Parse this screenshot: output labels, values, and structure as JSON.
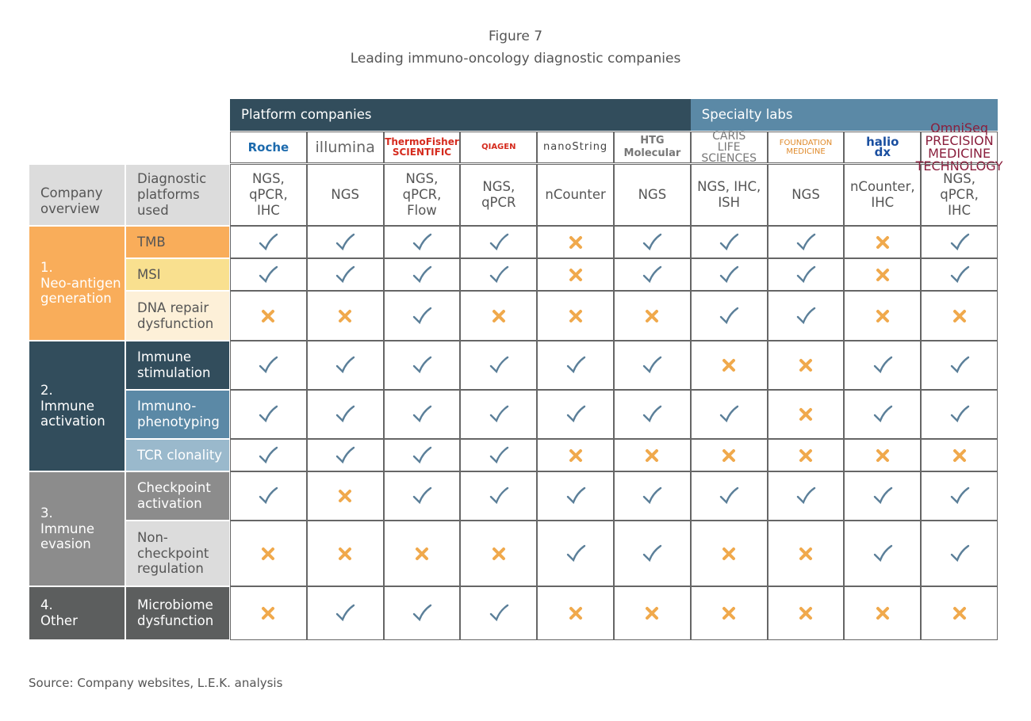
{
  "header": {
    "figure": "Figure 7",
    "title": "Leading immuno-oncology diagnostic companies"
  },
  "table": {
    "overview_label": "Company overview",
    "platforms_label": "Diagnostic platforms used",
    "groups": [
      {
        "label": "Platform companies",
        "companies": [
          {
            "logo": "Roche",
            "platforms": "NGS,\nqPCR,\nIHC"
          },
          {
            "logo": "illumina",
            "platforms": "NGS"
          },
          {
            "logo": "ThermoFisher\nSCIENTIFIC",
            "platforms": "NGS,\nqPCR,\nFlow"
          },
          {
            "logo": "QIAGEN",
            "platforms": "NGS,\nqPCR"
          },
          {
            "logo": "nanoString",
            "platforms": "nCounter"
          },
          {
            "logo": "HTG Molecular",
            "platforms": "NGS"
          }
        ]
      },
      {
        "label": "Specialty labs",
        "companies": [
          {
            "logo": "CARIS\nLIFE SCIENCES",
            "platforms": "NGS, IHC,\nISH"
          },
          {
            "logo": "FOUNDATION\nMEDICINE",
            "platforms": "NGS"
          },
          {
            "logo": "halio\ndx",
            "platforms": "nCounter,\nIHC"
          },
          {
            "logo": "OmniSeq\nPRECISION MEDICINE TECHNOLOGY",
            "platforms": "NGS,\nqPCR,\nIHC"
          }
        ]
      }
    ],
    "sections": [
      {
        "label": "1.\nNeo-antigen\ngeneration",
        "rows": [
          {
            "label": "TMB",
            "checks": [
              true,
              true,
              true,
              true,
              false,
              true,
              true,
              true,
              false,
              true
            ]
          },
          {
            "label": "MSI",
            "checks": [
              true,
              true,
              true,
              true,
              false,
              true,
              true,
              true,
              false,
              true
            ]
          },
          {
            "label": "DNA repair\ndysfunction",
            "checks": [
              false,
              false,
              true,
              false,
              false,
              false,
              true,
              true,
              false,
              false
            ]
          }
        ]
      },
      {
        "label": "2.\nImmune\nactivation",
        "rows": [
          {
            "label": "Immune\nstimulation",
            "checks": [
              true,
              true,
              true,
              true,
              true,
              true,
              false,
              false,
              true,
              true
            ]
          },
          {
            "label": "Immuno-\nphenotyping",
            "checks": [
              true,
              true,
              true,
              true,
              true,
              true,
              true,
              false,
              true,
              true
            ]
          },
          {
            "label": "TCR clonality",
            "checks": [
              true,
              true,
              true,
              true,
              false,
              false,
              false,
              false,
              false,
              false
            ]
          }
        ]
      },
      {
        "label": "3.\nImmune\nevasion",
        "rows": [
          {
            "label": "Checkpoint\nactivation",
            "checks": [
              true,
              false,
              true,
              true,
              true,
              true,
              true,
              true,
              true,
              true
            ]
          },
          {
            "label": "Non-\ncheckpoint\nregulation",
            "checks": [
              false,
              false,
              false,
              false,
              true,
              true,
              false,
              false,
              true,
              true
            ]
          }
        ]
      },
      {
        "label": "4.\nOther",
        "rows": [
          {
            "label": "Microbiome\ndysfunction",
            "checks": [
              false,
              true,
              true,
              true,
              false,
              false,
              false,
              false,
              false,
              false
            ]
          }
        ]
      }
    ]
  },
  "source": "Source: Company websites, L.E.K. analysis"
}
